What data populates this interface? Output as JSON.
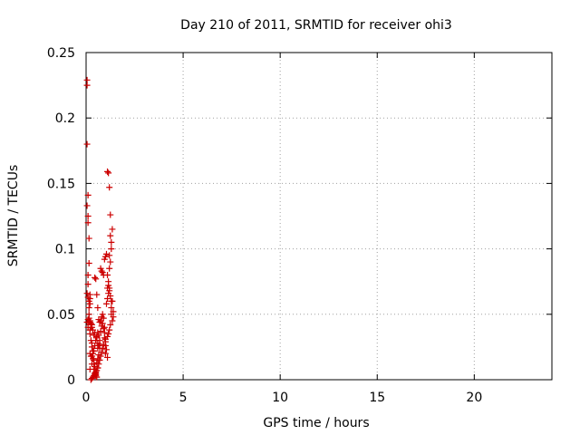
{
  "chart_data": {
    "type": "scatter",
    "title": "Day 210 of 2011, SRMTID for receiver ohi3",
    "xlabel": "GPS time / hours",
    "ylabel": "SRMTID / TECUs",
    "xlim": [
      0,
      24
    ],
    "ylim": [
      0,
      0.25
    ],
    "grid": true,
    "marker": "+",
    "x_ticks": [
      0,
      5,
      10,
      15,
      20
    ],
    "x_tick_labels": [
      "0",
      "5",
      "10",
      "15",
      "20"
    ],
    "y_ticks": [
      0,
      0.05,
      0.1,
      0.15,
      0.2,
      0.25
    ],
    "y_tick_labels": [
      "0",
      "0.05",
      "0.1",
      "0.15",
      "0.2",
      "0.25"
    ],
    "series": [
      {
        "name": "SRMTID",
        "color": "#cc0000",
        "x": [
          0.05,
          0.05,
          0.05,
          0.05,
          0.1,
          0.1,
          0.1,
          0.15,
          0.15,
          0.1,
          0.1,
          0.05,
          0.1,
          0.15,
          0.2,
          0.2,
          0.2,
          0.15,
          0.15,
          0.2,
          0.25,
          0.3,
          0.25,
          0.2,
          0.15,
          0.1,
          0.2,
          0.25,
          0.3,
          0.3,
          0.35,
          0.35,
          0.3,
          0.4,
          0.4,
          0.45,
          0.4,
          0.45,
          0.5,
          0.5,
          0.55,
          0.5,
          0.6,
          0.55,
          0.6,
          0.65,
          0.6,
          0.7,
          0.7,
          0.65,
          0.75,
          0.8,
          0.75,
          0.8,
          0.85,
          0.9,
          0.85,
          0.9,
          0.95,
          0.95,
          1.0,
          1.0,
          1.05,
          1.0,
          1.1,
          1.05,
          1.1,
          1.15,
          1.2,
          1.15,
          1.1,
          1.2,
          1.25,
          1.2,
          1.3,
          1.3,
          1.25,
          1.35,
          1.35,
          1.3,
          1.4,
          1.4,
          1.35,
          1.3,
          1.25,
          1.2,
          1.15,
          1.1,
          1.0,
          0.95,
          0.9,
          0.85,
          0.8,
          0.75,
          0.7,
          0.65,
          0.6,
          0.55,
          0.5,
          0.45,
          0.4,
          0.35,
          0.3,
          0.25,
          0.2,
          0.3,
          0.35,
          0.4,
          0.45,
          0.5,
          0.55,
          0.6,
          0.45,
          0.5,
          0.55,
          0.6,
          0.65,
          0.7,
          0.75,
          0.8,
          0.85,
          0.9,
          0.95,
          1.0,
          1.05,
          1.1,
          1.15,
          1.2,
          1.25,
          1.1,
          1.15,
          1.2,
          1.25,
          1.3,
          0.5,
          0.55,
          0.6,
          0.65,
          0.7,
          0.4,
          0.45,
          0.35,
          0.3,
          0.25,
          0.2,
          0.15,
          0.1,
          0.05,
          0.2,
          0.25
        ],
        "y": [
          0.229,
          0.225,
          0.18,
          0.133,
          0.141,
          0.125,
          0.12,
          0.108,
          0.089,
          0.08,
          0.073,
          0.066,
          0.063,
          0.06,
          0.058,
          0.062,
          0.065,
          0.055,
          0.05,
          0.045,
          0.043,
          0.042,
          0.04,
          0.038,
          0.044,
          0.046,
          0.035,
          0.03,
          0.028,
          0.025,
          0.022,
          0.02,
          0.018,
          0.015,
          0.012,
          0.01,
          0.008,
          0.005,
          0.004,
          0.003,
          0.002,
          0.006,
          0.009,
          0.013,
          0.016,
          0.019,
          0.024,
          0.027,
          0.03,
          0.034,
          0.037,
          0.041,
          0.045,
          0.048,
          0.05,
          0.047,
          0.043,
          0.039,
          0.036,
          0.032,
          0.029,
          0.026,
          0.023,
          0.02,
          0.017,
          0.058,
          0.062,
          0.066,
          0.07,
          0.075,
          0.08,
          0.085,
          0.09,
          0.095,
          0.1,
          0.105,
          0.11,
          0.115,
          0.06,
          0.055,
          0.052,
          0.048,
          0.045,
          0.05,
          0.042,
          0.038,
          0.035,
          0.033,
          0.031,
          0.04,
          0.027,
          0.024,
          0.021,
          0.018,
          0.015,
          0.012,
          0.009,
          0.007,
          0.005,
          0.004,
          0.003,
          0.002,
          0.001,
          0.0,
          0.008,
          0.012,
          0.016,
          0.022,
          0.026,
          0.03,
          0.033,
          0.036,
          0.078,
          0.077,
          0.065,
          0.055,
          0.046,
          0.044,
          0.085,
          0.083,
          0.082,
          0.08,
          0.092,
          0.094,
          0.096,
          0.159,
          0.158,
          0.147,
          0.126,
          0.07,
          0.072,
          0.068,
          0.064,
          0.06,
          0.03,
          0.032,
          0.028,
          0.026,
          0.024,
          0.034,
          0.036,
          0.038,
          0.04,
          0.042,
          0.044,
          0.047,
          0.04,
          0.044,
          0.02,
          0.018
        ]
      }
    ]
  }
}
